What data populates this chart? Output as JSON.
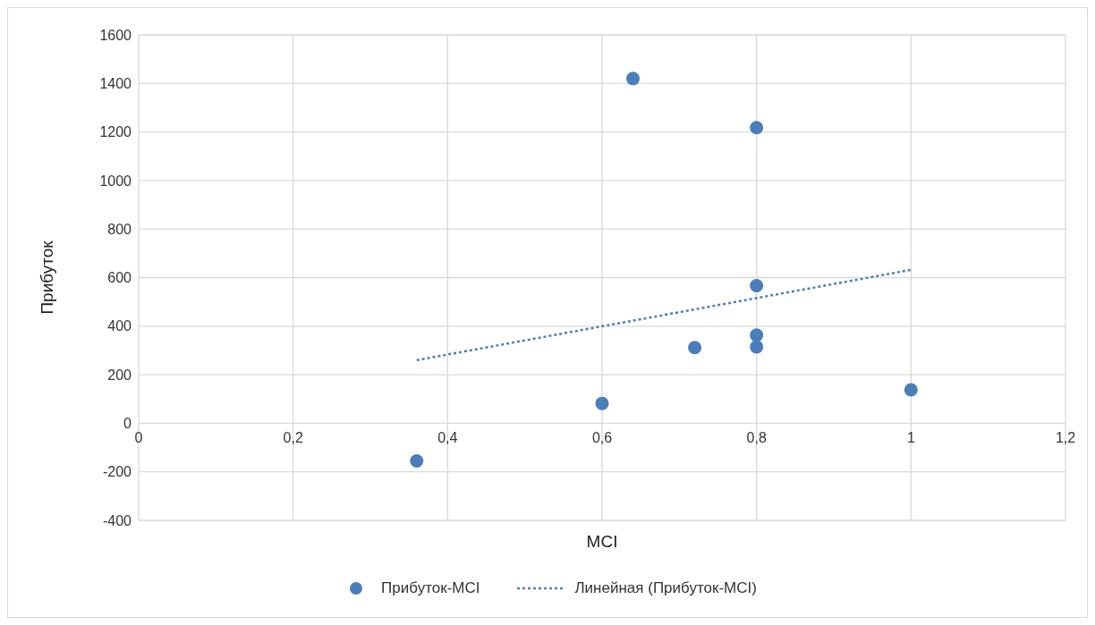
{
  "chart_data": {
    "type": "scatter",
    "xlabel": "MCI",
    "ylabel": "Прибуток",
    "xlim": [
      0,
      1.2
    ],
    "xticks": [
      0,
      {
        "value": 0.2,
        "label": "0,2"
      },
      {
        "value": 0.4,
        "label": "0,4"
      },
      {
        "value": 0.6,
        "label": "0,6"
      },
      {
        "value": 0.8,
        "label": "0,8"
      },
      1,
      {
        "value": 1.2,
        "label": "1,2"
      }
    ],
    "ylim": [
      -400,
      1600
    ],
    "yticks": [
      -400,
      -200,
      0,
      200,
      400,
      600,
      800,
      1000,
      1200,
      1400,
      1600
    ],
    "grid": true,
    "legend": "bottom",
    "series": [
      {
        "name": "Прибуток-MCI",
        "marker": "circle",
        "color": "#4a7ebb",
        "x": [
          0.36,
          0.6,
          0.64,
          0.72,
          0.8,
          0.8,
          0.8,
          0.8,
          1.0
        ],
        "values": [
          -155,
          82,
          1420,
          312,
          1218,
          567,
          363,
          315,
          138
        ]
      },
      {
        "name": "Линейная (Прибуток-MCI)",
        "type": "line",
        "line_style": "dotted",
        "color": "#4a7ebb",
        "x": [
          0.36,
          1.0
        ],
        "values": [
          260,
          632
        ]
      }
    ]
  }
}
